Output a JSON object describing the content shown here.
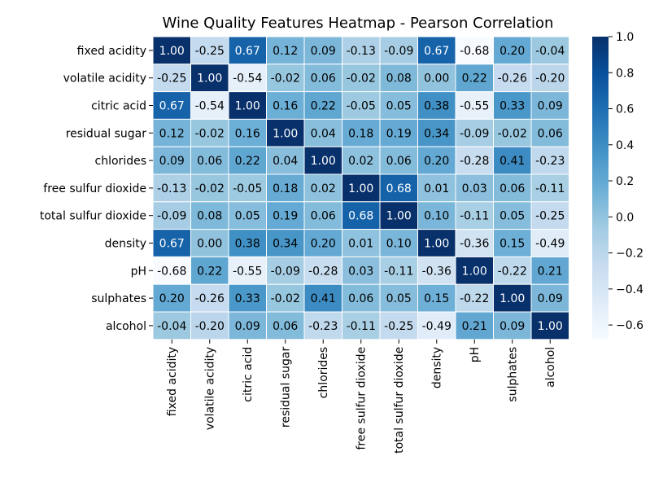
{
  "chart_data": {
    "type": "heatmap",
    "title": "Wine Quality Features Heatmap - Pearson Correlation",
    "row_labels": [
      "fixed acidity",
      "volatile acidity",
      "citric acid",
      "residual sugar",
      "chlorides",
      "free sulfur dioxide",
      "total sulfur dioxide",
      "density",
      "pH",
      "sulphates",
      "alcohol"
    ],
    "col_labels": [
      "fixed acidity",
      "volatile acidity",
      "citric acid",
      "residual sugar",
      "chlorides",
      "free sulfur dioxide",
      "total sulfur dioxide",
      "density",
      "pH",
      "sulphates",
      "alcohol"
    ],
    "values": [
      [
        1.0,
        -0.25,
        0.67,
        0.12,
        0.09,
        -0.13,
        -0.09,
        0.67,
        -0.68,
        0.2,
        -0.04
      ],
      [
        -0.25,
        1.0,
        -0.54,
        -0.02,
        0.06,
        -0.02,
        0.08,
        0.0,
        0.22,
        -0.26,
        -0.2
      ],
      [
        0.67,
        -0.54,
        1.0,
        0.16,
        0.22,
        -0.05,
        0.05,
        0.38,
        -0.55,
        0.33,
        0.09
      ],
      [
        0.12,
        -0.02,
        0.16,
        1.0,
        0.04,
        0.18,
        0.19,
        0.34,
        -0.09,
        -0.02,
        0.06
      ],
      [
        0.09,
        0.06,
        0.22,
        0.04,
        1.0,
        0.02,
        0.06,
        0.2,
        -0.28,
        0.41,
        -0.23
      ],
      [
        -0.13,
        -0.02,
        -0.05,
        0.18,
        0.02,
        1.0,
        0.68,
        0.01,
        0.03,
        0.06,
        -0.11
      ],
      [
        -0.09,
        0.08,
        0.05,
        0.19,
        0.06,
        0.68,
        1.0,
        0.1,
        -0.11,
        0.05,
        -0.25
      ],
      [
        0.67,
        0.0,
        0.38,
        0.34,
        0.2,
        0.01,
        0.1,
        1.0,
        -0.36,
        0.15,
        -0.49
      ],
      [
        -0.68,
        0.22,
        -0.55,
        -0.09,
        -0.28,
        0.03,
        -0.11,
        -0.36,
        1.0,
        -0.22,
        0.21
      ],
      [
        0.2,
        -0.26,
        0.33,
        -0.02,
        0.41,
        0.06,
        0.05,
        0.15,
        -0.22,
        1.0,
        0.09
      ],
      [
        -0.04,
        -0.2,
        0.09,
        0.06,
        -0.23,
        -0.11,
        -0.25,
        -0.49,
        0.21,
        0.09,
        1.0
      ]
    ],
    "value_format": "2 decimals",
    "colormap": "Blues",
    "vmin": -0.68,
    "vmax": 1.0,
    "colorbar": {
      "ticks": [
        1.0,
        0.8,
        0.6,
        0.4,
        0.2,
        0.0,
        -0.2,
        -0.4,
        -0.6
      ],
      "tick_labels": [
        "1.0",
        "0.8",
        "0.6",
        "0.4",
        "0.2",
        "0.0",
        "−0.2",
        "−0.4",
        "−0.6"
      ],
      "placement": "right"
    },
    "gridlines": "white cell borders",
    "colors": {
      "low": "#f7fbff",
      "mid": "#6baed6",
      "high": "#08306b"
    }
  }
}
